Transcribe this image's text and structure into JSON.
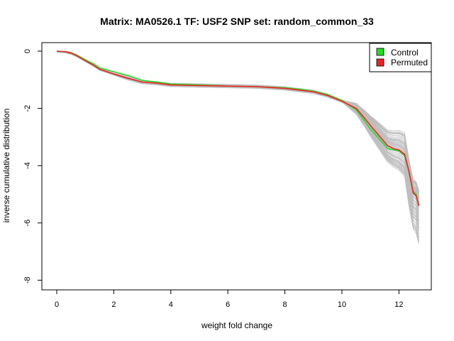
{
  "chart_data": {
    "type": "line",
    "title": "Matrix: MA0526.1 TF: USF2 SNP set: random_common_33",
    "xlabel": "weight fold change",
    "ylabel": "inverse cumulative distribution",
    "xlim": [
      0,
      12.7
    ],
    "ylim": [
      -8,
      0
    ],
    "x_ticks": [
      0,
      2,
      4,
      6,
      8,
      10,
      12
    ],
    "y_ticks": [
      0,
      -2,
      -4,
      -6,
      -8
    ],
    "legend": {
      "position": "top-right",
      "entries": [
        {
          "label": "Control",
          "color": "#22dd22"
        },
        {
          "label": "Permuted",
          "color": "#ee2222"
        }
      ]
    },
    "colors": {
      "background_lines": "#bebebe",
      "control": "#22dd22",
      "permuted": "#ee2222"
    },
    "series": [
      {
        "role": "control",
        "color": "#22dd22",
        "points": [
          [
            0,
            0
          ],
          [
            0.3,
            -0.02
          ],
          [
            0.5,
            -0.06
          ],
          [
            0.7,
            -0.14
          ],
          [
            1.0,
            -0.3
          ],
          [
            1.3,
            -0.45
          ],
          [
            1.5,
            -0.58
          ],
          [
            2.0,
            -0.72
          ],
          [
            2.5,
            -0.85
          ],
          [
            3.0,
            -1.02
          ],
          [
            3.5,
            -1.08
          ],
          [
            4.0,
            -1.15
          ],
          [
            5.0,
            -1.18
          ],
          [
            6.0,
            -1.22
          ],
          [
            7.0,
            -1.24
          ],
          [
            8.0,
            -1.28
          ],
          [
            8.5,
            -1.33
          ],
          [
            9.0,
            -1.4
          ],
          [
            9.5,
            -1.52
          ],
          [
            10.0,
            -1.72
          ],
          [
            10.5,
            -2.05
          ],
          [
            10.8,
            -2.45
          ],
          [
            11.0,
            -2.72
          ],
          [
            11.3,
            -3.05
          ],
          [
            11.6,
            -3.4
          ],
          [
            11.8,
            -3.45
          ],
          [
            12.0,
            -3.48
          ],
          [
            12.2,
            -3.65
          ],
          [
            12.35,
            -4.2
          ],
          [
            12.5,
            -4.9
          ],
          [
            12.6,
            -5.0
          ],
          [
            12.7,
            -5.4
          ]
        ]
      },
      {
        "role": "permuted",
        "color": "#ee2222",
        "points": [
          [
            0,
            0
          ],
          [
            0.3,
            -0.02
          ],
          [
            0.5,
            -0.07
          ],
          [
            0.7,
            -0.16
          ],
          [
            1.0,
            -0.33
          ],
          [
            1.3,
            -0.5
          ],
          [
            1.5,
            -0.63
          ],
          [
            2.0,
            -0.8
          ],
          [
            2.5,
            -0.95
          ],
          [
            3.0,
            -1.08
          ],
          [
            3.5,
            -1.12
          ],
          [
            4.0,
            -1.18
          ],
          [
            5.0,
            -1.2
          ],
          [
            6.0,
            -1.22
          ],
          [
            7.0,
            -1.24
          ],
          [
            8.0,
            -1.3
          ],
          [
            8.5,
            -1.36
          ],
          [
            9.0,
            -1.42
          ],
          [
            9.5,
            -1.55
          ],
          [
            10.0,
            -1.75
          ],
          [
            10.5,
            -2.0
          ],
          [
            10.8,
            -2.35
          ],
          [
            11.0,
            -2.6
          ],
          [
            11.3,
            -2.95
          ],
          [
            11.6,
            -3.3
          ],
          [
            11.8,
            -3.4
          ],
          [
            12.0,
            -3.45
          ],
          [
            12.2,
            -3.6
          ],
          [
            12.35,
            -4.2
          ],
          [
            12.5,
            -4.95
          ],
          [
            12.6,
            -5.05
          ],
          [
            12.7,
            -5.4
          ]
        ]
      }
    ]
  }
}
